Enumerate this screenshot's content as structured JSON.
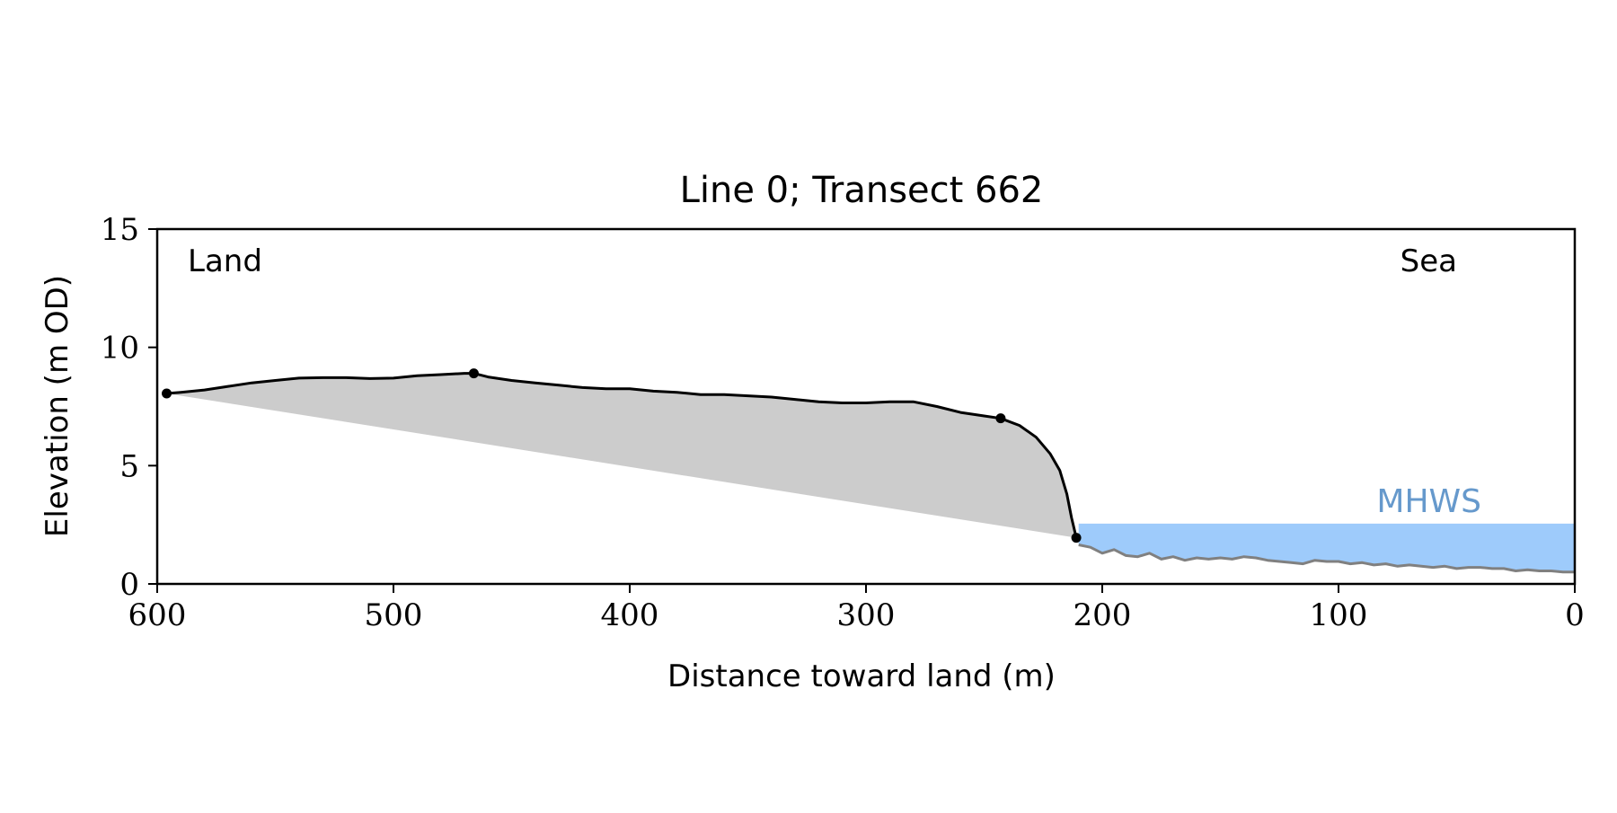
{
  "chart_data": {
    "type": "area",
    "title": "Line 0; Transect 662",
    "xlabel": "Distance toward land (m)",
    "ylabel": "Elevation (m OD)",
    "xlim": [
      600,
      0
    ],
    "ylim": [
      0,
      15
    ],
    "x_inverted": true,
    "grid": false,
    "legend": "none",
    "xticks": [
      600,
      500,
      400,
      300,
      200,
      100,
      0
    ],
    "yticks": [
      0,
      5,
      10,
      15
    ],
    "annotations": {
      "land": "Land",
      "sea": "Sea",
      "mhws": "MHWS"
    },
    "mhws_level": 2.55,
    "mhws_extent": [
      210,
      0
    ],
    "series": [
      {
        "role": "land-profile",
        "color": "#000000",
        "x": [
          596,
          590,
          580,
          570,
          560,
          550,
          540,
          530,
          520,
          510,
          500,
          490,
          480,
          470,
          466,
          460,
          450,
          440,
          430,
          420,
          410,
          400,
          390,
          380,
          370,
          360,
          350,
          340,
          330,
          320,
          310,
          300,
          290,
          280,
          270,
          260,
          250,
          243,
          235,
          228,
          222,
          218,
          215,
          213,
          211
        ],
        "y": [
          8.05,
          8.1,
          8.2,
          8.35,
          8.5,
          8.6,
          8.7,
          8.72,
          8.72,
          8.68,
          8.7,
          8.8,
          8.85,
          8.9,
          8.9,
          8.75,
          8.6,
          8.5,
          8.4,
          8.3,
          8.25,
          8.25,
          8.15,
          8.1,
          8.0,
          8.0,
          7.95,
          7.9,
          7.8,
          7.7,
          7.65,
          7.65,
          7.7,
          7.7,
          7.5,
          7.25,
          7.1,
          7.0,
          6.7,
          6.2,
          5.5,
          4.8,
          3.8,
          2.8,
          1.95
        ]
      },
      {
        "role": "seabed-profile",
        "color": "#808080",
        "x": [
          210,
          205,
          200,
          195,
          190,
          185,
          180,
          175,
          170,
          165,
          160,
          155,
          150,
          145,
          140,
          135,
          130,
          125,
          120,
          115,
          110,
          105,
          100,
          95,
          90,
          85,
          80,
          75,
          70,
          65,
          60,
          55,
          50,
          45,
          40,
          35,
          30,
          25,
          20,
          15,
          10,
          5,
          0
        ],
        "y": [
          1.65,
          1.55,
          1.3,
          1.45,
          1.2,
          1.15,
          1.3,
          1.05,
          1.15,
          1.0,
          1.1,
          1.05,
          1.1,
          1.05,
          1.15,
          1.1,
          1.0,
          0.95,
          0.9,
          0.85,
          1.0,
          0.95,
          0.95,
          0.85,
          0.9,
          0.8,
          0.85,
          0.75,
          0.8,
          0.75,
          0.7,
          0.75,
          0.65,
          0.7,
          0.7,
          0.65,
          0.65,
          0.55,
          0.6,
          0.55,
          0.55,
          0.5,
          0.5
        ]
      }
    ],
    "key_points": {
      "x": [
        596,
        466,
        243,
        211
      ],
      "y": [
        8.05,
        8.9,
        7.0,
        1.95
      ]
    },
    "colors": {
      "land_fill": "#cccccc",
      "sea_fill": "#9ecbfb",
      "mhws_text": "#6699cc",
      "axes": "#000000"
    }
  }
}
